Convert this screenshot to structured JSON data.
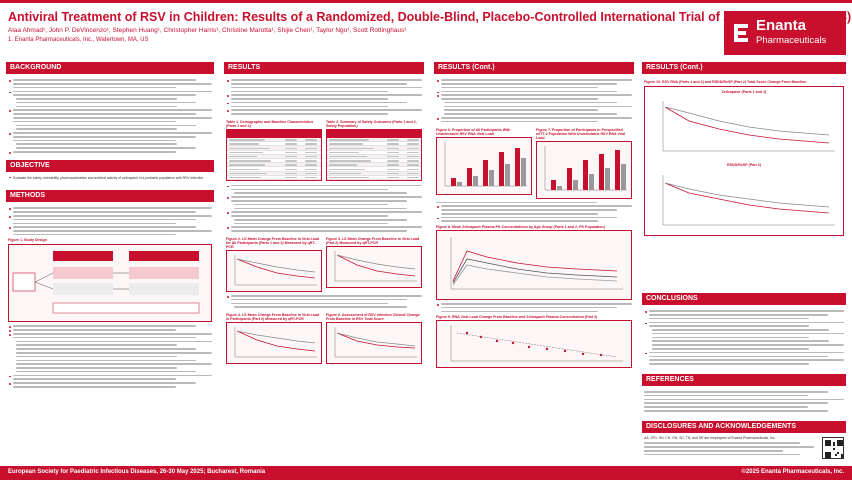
{
  "poster": {
    "title": "Antiviral Treatment of RSV in Children: Results of a Randomized, Double-Blind, Placebo-Controlled International Trial of Zelicapavir (EDP-938)",
    "authors": "Alaa Ahmad¹, John P. DeVincenzo¹, Stephen Huang¹, Christopher Harris¹, Christine Marotta¹, Shijie Chen¹, Taylor Ngo¹, Scott Rottinghaus¹",
    "affiliation": "1. Enanta Pharmaceuticals, Inc., Watertown, MA, US",
    "logo_name": "Enanta",
    "logo_sub": "Pharmaceuticals",
    "brand_color": "#c8102e"
  },
  "sections": {
    "background": "BACKGROUND",
    "objective": "OBJECTIVE",
    "methods": "METHODS",
    "results": "RESULTS",
    "results_cont": "RESULTS (Cont.)",
    "results_cont2": "RESULTS (Cont.)",
    "conclusions": "CONCLUSIONS",
    "references": "REFERENCES",
    "disclosures": "DISCLOSURES AND ACKNOWLEDGEMENTS"
  },
  "objective_text": "Evaluate the safety, tolerability, pharmacokinetics and antiviral activity of zelicapavir in a pediatric population with RSV infection",
  "figures": {
    "fig1": "Figure 1. Study Design",
    "table1": "Table 1. Demographic and Baseline Characteristics (Parts 1 and 2)",
    "table2": "Table 2. Summary of Safety Outcomes (Parts 1 and 2, Safety Population)",
    "fig2": "Figure 2. LS Mean Change From Baseline in Viral Load for All Participants (Parts 1 and 2) Measured by qRT-PCR",
    "fig3": "Figure 3. LS Mean Change From Baseline in Viral Load (Part 2) Measured by qRT-PCR",
    "fig4": "Figure 4. LS Mean Change From Baseline in Viral Load in Participants (Part 2) Measured by qRT-PCR",
    "fig5": "Figure 5. Assessment of RSV Infection Clinical Change From Baseline in RSV Total Score",
    "fig6": "Figure 6. Proportion of All Participants With Undetectable RSV RNA Viral Load",
    "fig7": "Figure 7. Proportion of Participants in Prespecified mITT-2 Population With Undetectable RSV RNA Viral Load",
    "fig8": "Figure 8. Mean Zelicapavir Plasma PK Concentrations by Age Group (Parts 1 and 2, PK Population)",
    "fig9": "Figure 9. RNA Viral Load Change From Baseline and Zelicapavir Plasma Concentration (Part 2)",
    "fig10": "Figure 10. RSV RNA (Parts 1 and 2) and RSDD/ReSP (Part 2) Total Score Change From Baseline",
    "fig10a": "Zelicapavir (Parts 1 and 2)",
    "fig10b": "RSDD/ReSP (Part 2)"
  },
  "disclosure_text": "AA, JPD, SH, CH, CM, SC, TN, and SR are employees of Enanta Pharmaceuticals, Inc.",
  "footer": {
    "left": "European Society for Paediatric Infectious Diseases, 26-30 May 2025; Bucharest, Romania",
    "right": "©2025 Enanta Pharmaceuticals, Inc."
  }
}
